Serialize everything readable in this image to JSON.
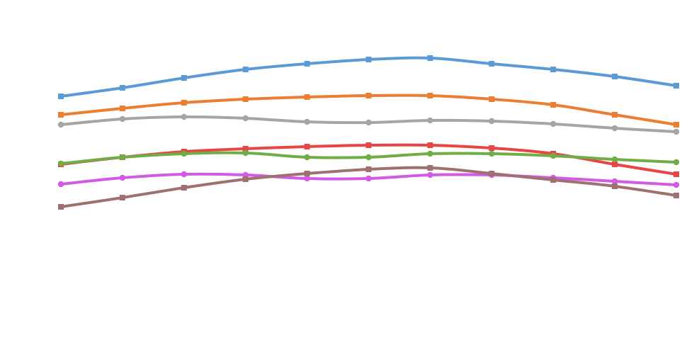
{
  "chart_data": {
    "type": "line",
    "title": "",
    "xlabel": "",
    "ylabel": "",
    "x": [
      1,
      2,
      3,
      4,
      5,
      6,
      7,
      8,
      9,
      10,
      11
    ],
    "grid": false,
    "series": [
      {
        "color": "#5b9bd5",
        "marker": "square",
        "values": [
          136,
          124,
          110,
          98,
          90,
          84,
          82,
          90,
          98,
          108,
          121
        ]
      },
      {
        "color": "#ed7d31",
        "marker": "square",
        "values": [
          162,
          153,
          145,
          140,
          137,
          135,
          135,
          140,
          148,
          162,
          176
        ]
      },
      {
        "color": "#a5a5a5",
        "marker": "circle",
        "values": [
          176,
          168,
          165,
          167,
          172,
          173,
          170,
          171,
          175,
          181,
          186
        ]
      },
      {
        "color": "#e84545",
        "marker": "square",
        "values": [
          232,
          222,
          214,
          210,
          207,
          205,
          205,
          209,
          217,
          232,
          246
        ]
      },
      {
        "color": "#70ad47",
        "marker": "circle",
        "values": [
          231,
          222,
          217,
          216,
          222,
          222,
          217,
          217,
          220,
          225,
          229
        ]
      },
      {
        "color": "#d25ae5",
        "marker": "circle",
        "values": [
          260,
          251,
          246,
          247,
          252,
          252,
          247,
          247,
          251,
          256,
          261
        ]
      },
      {
        "color": "#9e7070",
        "marker": "square",
        "values": [
          292,
          279,
          265,
          253,
          245,
          239,
          237,
          245,
          254,
          263,
          276
        ]
      }
    ]
  }
}
